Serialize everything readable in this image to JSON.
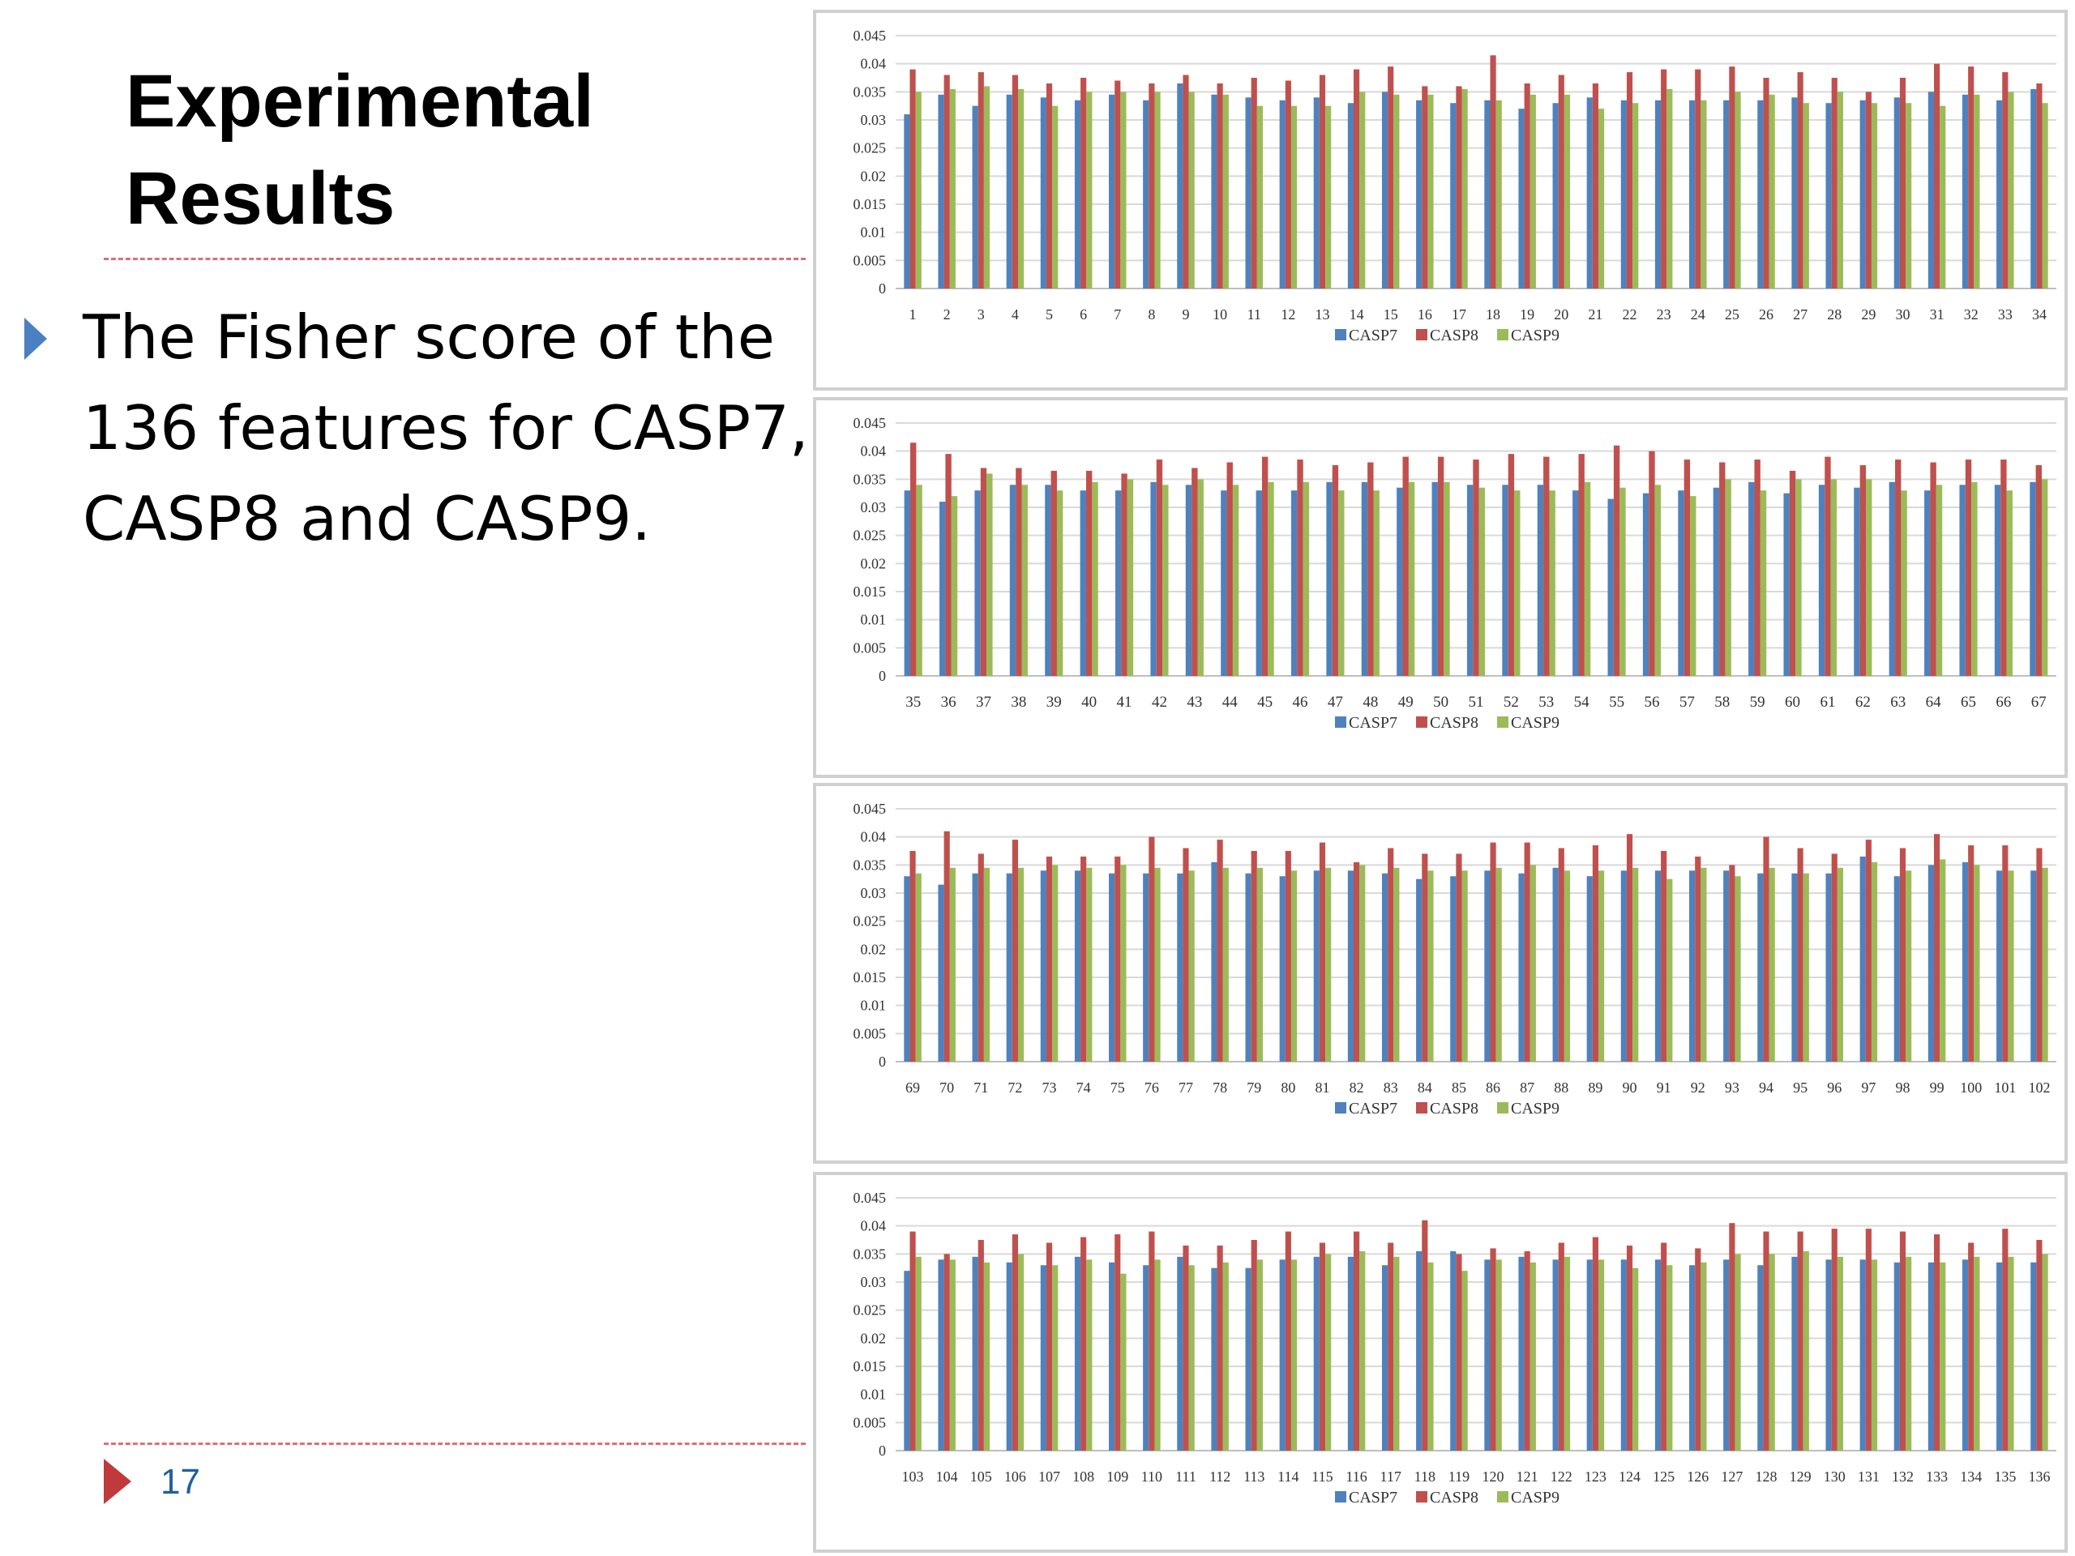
{
  "slide": {
    "title_lines": [
      "Experimental",
      "Results"
    ],
    "bullet_lines": [
      "The Fisher score of the",
      "136 features for CASP7,",
      "CASP8 and CASP9."
    ],
    "page_number": "17"
  },
  "colors": {
    "CASP7": "#4f81bd",
    "CASP8": "#c0504d",
    "CASP9": "#9bbb59",
    "title": "#000000",
    "page_number": "#1f5fa0",
    "bullet": "#4a7fc1",
    "rule": "#d9707a"
  },
  "chart_data": [
    {
      "type": "bar",
      "categories": [
        "1",
        "2",
        "3",
        "4",
        "5",
        "6",
        "7",
        "8",
        "9",
        "10",
        "11",
        "12",
        "13",
        "14",
        "15",
        "16",
        "17",
        "18",
        "19",
        "20",
        "21",
        "22",
        "23",
        "24",
        "25",
        "26",
        "27",
        "28",
        "29",
        "30",
        "31",
        "32",
        "33",
        "34"
      ],
      "series": [
        {
          "name": "CASP7",
          "values": [
            0.031,
            0.0345,
            0.0325,
            0.0345,
            0.034,
            0.0335,
            0.0345,
            0.0335,
            0.0365,
            0.0345,
            0.034,
            0.0335,
            0.034,
            0.033,
            0.035,
            0.0335,
            0.033,
            0.0335,
            0.032,
            0.033,
            0.034,
            0.0335,
            0.0335,
            0.0335,
            0.0335,
            0.0335,
            0.034,
            0.033,
            0.0335,
            0.034,
            0.035,
            0.0345,
            0.0335,
            0.0355
          ]
        },
        {
          "name": "CASP8",
          "values": [
            0.039,
            0.038,
            0.0385,
            0.038,
            0.0365,
            0.0375,
            0.037,
            0.0365,
            0.038,
            0.0365,
            0.0375,
            0.037,
            0.038,
            0.039,
            0.0395,
            0.036,
            0.036,
            0.0415,
            0.0365,
            0.038,
            0.0365,
            0.0385,
            0.039,
            0.039,
            0.0395,
            0.0375,
            0.0385,
            0.0375,
            0.035,
            0.0375,
            0.04,
            0.0395,
            0.0385,
            0.0365
          ]
        },
        {
          "name": "CASP9",
          "values": [
            0.035,
            0.0355,
            0.036,
            0.0355,
            0.0325,
            0.035,
            0.035,
            0.035,
            0.035,
            0.0345,
            0.0325,
            0.0325,
            0.0325,
            0.035,
            0.0345,
            0.0345,
            0.0355,
            0.0335,
            0.0345,
            0.0345,
            0.032,
            0.033,
            0.0355,
            0.0335,
            0.035,
            0.0345,
            0.033,
            0.035,
            0.033,
            0.033,
            0.0325,
            0.0345,
            0.035,
            0.033
          ]
        }
      ],
      "ylim": [
        0,
        0.045
      ],
      "yticks": [
        "0",
        "0.005",
        "0.01",
        "0.015",
        "0.02",
        "0.025",
        "0.03",
        "0.035",
        "0.04",
        "0.045"
      ],
      "legend": [
        "CASP7",
        "CASP8",
        "CASP9"
      ],
      "legend_position": "bottom",
      "grid": true
    },
    {
      "type": "bar",
      "categories": [
        "35",
        "36",
        "37",
        "38",
        "39",
        "40",
        "41",
        "42",
        "43",
        "44",
        "45",
        "46",
        "47",
        "48",
        "49",
        "50",
        "51",
        "52",
        "53",
        "54",
        "55",
        "56",
        "57",
        "58",
        "59",
        "60",
        "61",
        "62",
        "63",
        "64",
        "65",
        "66",
        "67"
      ],
      "series": [
        {
          "name": "CASP7",
          "values": [
            0.033,
            0.031,
            0.033,
            0.034,
            0.034,
            0.033,
            0.033,
            0.0345,
            0.034,
            0.033,
            0.033,
            0.033,
            0.0345,
            0.0345,
            0.0335,
            0.0345,
            0.034,
            0.034,
            0.034,
            0.033,
            0.0315,
            0.0325,
            0.033,
            0.0335,
            0.0345,
            0.0325,
            0.034,
            0.0335,
            0.0345,
            0.033,
            0.034,
            0.034,
            0.0345
          ]
        },
        {
          "name": "CASP8",
          "values": [
            0.0415,
            0.0395,
            0.037,
            0.037,
            0.0365,
            0.0365,
            0.036,
            0.0385,
            0.037,
            0.038,
            0.039,
            0.0385,
            0.0375,
            0.038,
            0.039,
            0.039,
            0.0385,
            0.0395,
            0.039,
            0.0395,
            0.041,
            0.04,
            0.0385,
            0.038,
            0.0385,
            0.0365,
            0.039,
            0.0375,
            0.0385,
            0.038,
            0.0385,
            0.0385,
            0.0375
          ]
        },
        {
          "name": "CASP9",
          "values": [
            0.034,
            0.032,
            0.036,
            0.034,
            0.033,
            0.0345,
            0.035,
            0.034,
            0.035,
            0.034,
            0.0345,
            0.0345,
            0.033,
            0.033,
            0.0345,
            0.0345,
            0.0335,
            0.033,
            0.033,
            0.0345,
            0.0335,
            0.034,
            0.032,
            0.035,
            0.033,
            0.035,
            0.035,
            0.035,
            0.033,
            0.034,
            0.0345,
            0.033,
            0.035
          ]
        }
      ],
      "ylim": [
        0,
        0.045
      ],
      "yticks": [
        "0",
        "0.005",
        "0.01",
        "0.015",
        "0.02",
        "0.025",
        "0.03",
        "0.035",
        "0.04",
        "0.045"
      ],
      "legend": [
        "CASP7",
        "CASP8",
        "CASP9"
      ],
      "legend_position": "bottom",
      "grid": true
    },
    {
      "type": "bar",
      "categories": [
        "69",
        "70",
        "71",
        "72",
        "73",
        "74",
        "75",
        "76",
        "77",
        "78",
        "79",
        "80",
        "81",
        "82",
        "83",
        "84",
        "85",
        "86",
        "87",
        "88",
        "89",
        "90",
        "91",
        "92",
        "93",
        "94",
        "95",
        "96",
        "97",
        "98",
        "99",
        "100",
        "101",
        "102"
      ],
      "series": [
        {
          "name": "CASP7",
          "values": [
            0.033,
            0.0315,
            0.0335,
            0.0335,
            0.034,
            0.034,
            0.0335,
            0.0335,
            0.0335,
            0.0355,
            0.0335,
            0.033,
            0.034,
            0.034,
            0.0335,
            0.0325,
            0.033,
            0.034,
            0.0335,
            0.0345,
            0.033,
            0.034,
            0.034,
            0.034,
            0.034,
            0.0335,
            0.0335,
            0.0335,
            0.0365,
            0.033,
            0.035,
            0.0355,
            0.034,
            0.034
          ]
        },
        {
          "name": "CASP8",
          "values": [
            0.0375,
            0.041,
            0.037,
            0.0395,
            0.0365,
            0.0365,
            0.0365,
            0.04,
            0.038,
            0.0395,
            0.0375,
            0.0375,
            0.039,
            0.0355,
            0.038,
            0.037,
            0.037,
            0.039,
            0.039,
            0.038,
            0.0385,
            0.0405,
            0.0375,
            0.0365,
            0.035,
            0.04,
            0.038,
            0.037,
            0.0395,
            0.038,
            0.0405,
            0.0385,
            0.0385,
            0.038
          ]
        },
        {
          "name": "CASP9",
          "values": [
            0.0335,
            0.0345,
            0.0345,
            0.0345,
            0.035,
            0.0345,
            0.035,
            0.0345,
            0.034,
            0.0345,
            0.0345,
            0.034,
            0.0345,
            0.035,
            0.0345,
            0.034,
            0.034,
            0.0345,
            0.035,
            0.034,
            0.034,
            0.0345,
            0.0325,
            0.0345,
            0.033,
            0.0345,
            0.0335,
            0.0345,
            0.0355,
            0.034,
            0.036,
            0.035,
            0.034,
            0.0345
          ]
        }
      ],
      "ylim": [
        0,
        0.045
      ],
      "yticks": [
        "0",
        "0.005",
        "0.01",
        "0.015",
        "0.02",
        "0.025",
        "0.03",
        "0.035",
        "0.04",
        "0.045"
      ],
      "legend": [
        "CASP7",
        "CASP8",
        "CASP9"
      ],
      "legend_position": "bottom",
      "grid": true
    },
    {
      "type": "bar",
      "categories": [
        "103",
        "104",
        "105",
        "106",
        "107",
        "108",
        "109",
        "110",
        "111",
        "112",
        "113",
        "114",
        "115",
        "116",
        "117",
        "118",
        "119",
        "120",
        "121",
        "122",
        "123",
        "124",
        "125",
        "126",
        "127",
        "128",
        "129",
        "130",
        "131",
        "132",
        "133",
        "134",
        "135",
        "136"
      ],
      "series": [
        {
          "name": "CASP7",
          "values": [
            0.032,
            0.034,
            0.0345,
            0.0335,
            0.033,
            0.0345,
            0.0335,
            0.033,
            0.0345,
            0.0325,
            0.0325,
            0.034,
            0.0345,
            0.0345,
            0.033,
            0.0355,
            0.0355,
            0.034,
            0.0345,
            0.034,
            0.034,
            0.034,
            0.034,
            0.033,
            0.034,
            0.033,
            0.0345,
            0.034,
            0.034,
            0.0335,
            0.0335,
            0.034,
            0.0335,
            0.0335
          ]
        },
        {
          "name": "CASP8",
          "values": [
            0.039,
            0.035,
            0.0375,
            0.0385,
            0.037,
            0.038,
            0.0385,
            0.039,
            0.0365,
            0.0365,
            0.0375,
            0.039,
            0.037,
            0.039,
            0.037,
            0.041,
            0.035,
            0.036,
            0.0355,
            0.037,
            0.038,
            0.0365,
            0.037,
            0.036,
            0.0405,
            0.039,
            0.039,
            0.0395,
            0.0395,
            0.039,
            0.0385,
            0.037,
            0.0395,
            0.0375
          ]
        },
        {
          "name": "CASP9",
          "values": [
            0.0345,
            0.034,
            0.0335,
            0.035,
            0.033,
            0.034,
            0.0315,
            0.034,
            0.033,
            0.0335,
            0.034,
            0.034,
            0.035,
            0.0355,
            0.0345,
            0.0335,
            0.032,
            0.034,
            0.0335,
            0.0345,
            0.034,
            0.0325,
            0.033,
            0.0335,
            0.035,
            0.035,
            0.0355,
            0.0345,
            0.034,
            0.0345,
            0.0335,
            0.0345,
            0.0345,
            0.035
          ]
        }
      ],
      "ylim": [
        0,
        0.045
      ],
      "yticks": [
        "0",
        "0.005",
        "0.01",
        "0.015",
        "0.02",
        "0.025",
        "0.03",
        "0.035",
        "0.04",
        "0.045"
      ],
      "legend": [
        "CASP7",
        "CASP8",
        "CASP9"
      ],
      "legend_position": "bottom",
      "grid": true
    }
  ]
}
